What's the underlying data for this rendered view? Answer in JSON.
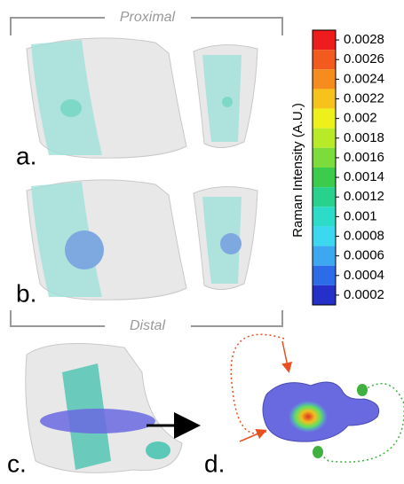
{
  "figure": {
    "bracket_top": "Proximal",
    "bracket_bottom": "Distal",
    "panels": [
      "a.",
      "b.",
      "c.",
      "d."
    ],
    "colorbar": {
      "label": "Raman Intensity (A.U.)",
      "ticks": [
        0.0028,
        0.0026,
        0.0024,
        0.0022,
        0.002,
        0.0018,
        0.0016,
        0.0014,
        0.0012,
        0.001,
        0.0008,
        0.0006,
        0.0004,
        0.0002
      ],
      "colors": [
        "#ee1c1c",
        "#f25a1e",
        "#f68c1e",
        "#f8c21c",
        "#eef01c",
        "#b8ea28",
        "#7cdc3c",
        "#3ccc4c",
        "#28d28c",
        "#2cdcc8",
        "#3cd8f0",
        "#3ca8f0",
        "#2c6ce8",
        "#2430c8"
      ]
    }
  }
}
